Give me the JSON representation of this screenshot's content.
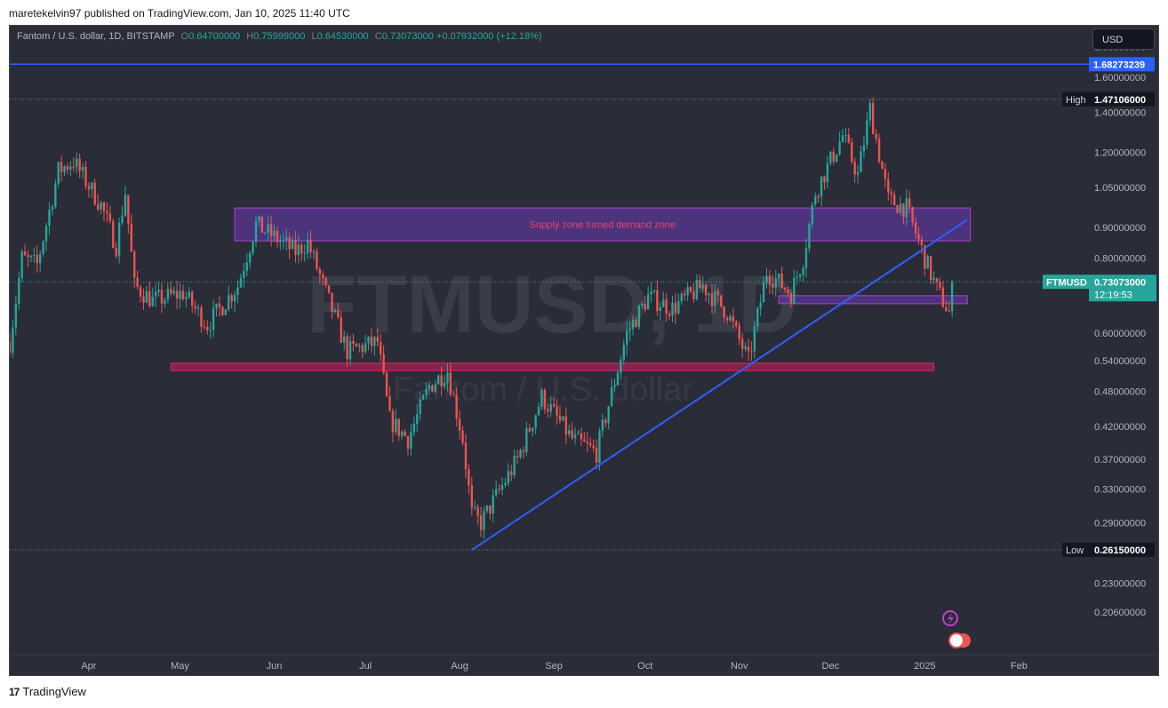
{
  "caption": "maretekelvin97 published on TradingView.com, Jan 10, 2025 11:40 UTC",
  "currency_button": "USD",
  "footer_brand": "TradingView",
  "legend": {
    "symbol": "Fantom / U.S. dollar, 1D, BITSTAMP",
    "open_label": "O",
    "open": "0.64700000",
    "high_label": "H",
    "high": "0.75999000",
    "low_label": "L",
    "low": "0.64530000",
    "close_label": "C",
    "close": "0.73073000",
    "change": "+0.07932000 (+12.18%)"
  },
  "watermark": {
    "ticker": "FTMUSD, 1D",
    "name": "Fantom / U.S. dollar"
  },
  "colors": {
    "background": "#2a2c37",
    "up": "#26a69a",
    "down": "#ef5350",
    "trendline": "#2962ff",
    "zone_purple": "#4a2a82",
    "zone_pink": "#e91e63"
  },
  "chart_data": {
    "type": "candlestick",
    "symbol": "FTMUSD",
    "interval": "1D",
    "y_scale": "log",
    "ylim": [
      0.175,
      1.95
    ],
    "y_ticks": [
      "1.80000000",
      "1.60000000",
      "1.40000000",
      "1.20000000",
      "1.05000000",
      "0.90000000",
      "0.80000000",
      "0.60000000",
      "0.54000000",
      "0.48000000",
      "0.42000000",
      "0.37000000",
      "0.33000000",
      "0.29000000",
      "0.23000000",
      "0.20600000"
    ],
    "x_ticks": [
      "Apr",
      "May",
      "Jun",
      "Jul",
      "Aug",
      "Sep",
      "Oct",
      "Nov",
      "Dec",
      "2025",
      "Feb"
    ],
    "x_tick_dates": [
      "2024-04-01",
      "2024-05-01",
      "2024-06-01",
      "2024-07-01",
      "2024-08-01",
      "2024-09-01",
      "2024-10-01",
      "2024-11-01",
      "2024-12-01",
      "2025-01-01",
      "2025-02-01"
    ],
    "x_range": [
      "2024-03-06",
      "2025-02-24"
    ],
    "price_path": [
      [
        "2024-03-06",
        0.58
      ],
      [
        "2024-03-10",
        0.8
      ],
      [
        "2024-03-15",
        0.78
      ],
      [
        "2024-03-22",
        1.12
      ],
      [
        "2024-03-27",
        1.16
      ],
      [
        "2024-04-05",
        0.98
      ],
      [
        "2024-04-10",
        0.84
      ],
      [
        "2024-04-13",
        1.03
      ],
      [
        "2024-04-16",
        0.72
      ],
      [
        "2024-04-22",
        0.68
      ],
      [
        "2024-05-02",
        0.7
      ],
      [
        "2024-05-10",
        0.62
      ],
      [
        "2024-05-20",
        0.72
      ],
      [
        "2024-05-26",
        0.91
      ],
      [
        "2024-06-05",
        0.84
      ],
      [
        "2024-06-08",
        0.82
      ],
      [
        "2024-06-12",
        0.85
      ],
      [
        "2024-06-18",
        0.7
      ],
      [
        "2024-06-25",
        0.56
      ],
      [
        "2024-07-05",
        0.58
      ],
      [
        "2024-07-09",
        0.43
      ],
      [
        "2024-07-15",
        0.4
      ],
      [
        "2024-07-22",
        0.49
      ],
      [
        "2024-07-28",
        0.52
      ],
      [
        "2024-08-02",
        0.4
      ],
      [
        "2024-08-05",
        0.3
      ],
      [
        "2024-08-08",
        0.29
      ],
      [
        "2024-08-20",
        0.37
      ],
      [
        "2024-08-28",
        0.47
      ],
      [
        "2024-09-07",
        0.4
      ],
      [
        "2024-09-15",
        0.38
      ],
      [
        "2024-09-25",
        0.6
      ],
      [
        "2024-10-02",
        0.69
      ],
      [
        "2024-10-10",
        0.66
      ],
      [
        "2024-10-20",
        0.72
      ],
      [
        "2024-10-28",
        0.65
      ],
      [
        "2024-11-04",
        0.54
      ],
      [
        "2024-11-10",
        0.76
      ],
      [
        "2024-11-18",
        0.7
      ],
      [
        "2024-11-22",
        0.8
      ],
      [
        "2024-11-26",
        1.03
      ],
      [
        "2024-12-05",
        1.28
      ],
      [
        "2024-12-10",
        1.1
      ],
      [
        "2024-12-14",
        1.42
      ],
      [
        "2024-12-20",
        1.0
      ],
      [
        "2024-12-26",
        0.97
      ],
      [
        "2025-01-01",
        0.8
      ],
      [
        "2025-01-05",
        0.71
      ],
      [
        "2025-01-09",
        0.65
      ],
      [
        "2025-01-10",
        0.73073
      ]
    ],
    "horizontal_lines": [
      {
        "price": 1.68273239,
        "label": "1.68273239",
        "color": "#2962ff"
      },
      {
        "price": 1.47106,
        "tag": "High",
        "label": "1.47106000"
      },
      {
        "price": 0.2615,
        "tag": "Low",
        "label": "0.26150000"
      }
    ],
    "last_price": {
      "ticker": "FTMUSD",
      "price": "0.73073000",
      "countdown": "12:19:53"
    },
    "zones": [
      {
        "start": "2024-05-19",
        "end": "2025-01-16",
        "top": 0.97,
        "bottom": 0.855,
        "color": "purple",
        "label": "Supply zone turned demand zone"
      },
      {
        "start": "2024-04-28",
        "end": "2025-01-04",
        "top": 0.535,
        "bottom": 0.52,
        "color": "pink"
      },
      {
        "start": "2024-11-14",
        "end": "2025-01-15",
        "top": 0.693,
        "bottom": 0.672,
        "color": "purple"
      }
    ],
    "trendline": {
      "from": [
        "2024-08-05",
        0.2615
      ],
      "to": [
        "2025-01-15",
        0.927
      ]
    }
  }
}
